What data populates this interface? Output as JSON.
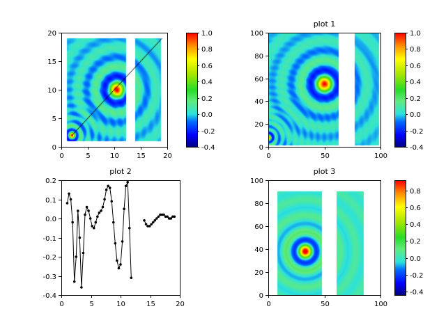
{
  "window": {
    "background": "#ffffff",
    "frame_color": "#000000",
    "text_color": "#000000"
  },
  "chart_data": [
    {
      "type": "heatmap",
      "title": "",
      "x_range": [
        0,
        20
      ],
      "y_range": [
        0,
        20
      ],
      "x_ticks": {
        "values": [
          0,
          5,
          10,
          15,
          20
        ],
        "labels": [
          "0",
          "5",
          "10",
          "15",
          "20"
        ]
      },
      "y_ticks": {
        "values": [
          0,
          5,
          10,
          15,
          20
        ],
        "labels": [
          "0",
          "5",
          "10",
          "15",
          "20"
        ]
      },
      "colorbar": {
        "range": [
          -0.4,
          1.0
        ],
        "tick_values": [
          1.0,
          0.8,
          0.6,
          0.4,
          0.2,
          0.0,
          -0.2,
          -0.4
        ],
        "tick_labels": [
          "1.0",
          "0.8",
          "0.6",
          "0.4",
          "0.2",
          "0.0",
          "-0.2",
          "-0.4"
        ]
      },
      "blocks": [
        {
          "x": [
            1,
            12.2
          ],
          "y": [
            1,
            19
          ]
        },
        {
          "x": [
            14,
            18.8
          ],
          "y": [
            1,
            19
          ]
        }
      ],
      "sources": [
        {
          "cx": 10.5,
          "cy": 10,
          "k": 1.9,
          "amp": 1.0
        },
        {
          "cx": 2,
          "cy": 2,
          "k": 4.5,
          "amp": 1.0
        }
      ],
      "overlay_line": {
        "x": [
          2,
          19
        ],
        "y": [
          2,
          19
        ]
      }
    },
    {
      "type": "heatmap",
      "title": "plot 1",
      "x_range": [
        0,
        100
      ],
      "y_range": [
        0,
        100
      ],
      "x_ticks": {
        "values": [
          0,
          50,
          100
        ],
        "labels": [
          "0",
          "50",
          "100"
        ]
      },
      "y_ticks": {
        "values": [
          0,
          20,
          40,
          60,
          80,
          100
        ],
        "labels": [
          "0",
          "20",
          "40",
          "60",
          "80",
          "100"
        ]
      },
      "colorbar": {
        "range": [
          -0.4,
          1.0
        ],
        "tick_values": [
          1.0,
          0.8,
          0.6,
          0.4,
          0.2,
          0.0,
          -0.2,
          -0.4
        ],
        "tick_labels": [
          "1.0",
          "0.8",
          "0.6",
          "0.4",
          "0.2",
          "0.0",
          "-0.2",
          "-0.4"
        ]
      },
      "blocks": [
        {
          "x": [
            0,
            63
          ],
          "y": [
            1,
            100
          ]
        },
        {
          "x": [
            77,
            99
          ],
          "y": [
            1,
            100
          ]
        }
      ],
      "sources": [
        {
          "cx": 50,
          "cy": 55,
          "k": 0.37,
          "amp": 1.0
        },
        {
          "cx": 0,
          "cy": 8,
          "k": 1.1,
          "amp": 1.0
        }
      ],
      "overlay_line": null
    },
    {
      "type": "line",
      "title": "plot 2",
      "x_range": [
        0,
        20
      ],
      "y_range": [
        -0.4,
        0.2
      ],
      "x_ticks": {
        "values": [
          0,
          5,
          10,
          15,
          20
        ],
        "labels": [
          "0",
          "5",
          "10",
          "15",
          "20"
        ]
      },
      "y_ticks": {
        "values": [
          0.2,
          0.1,
          0.0,
          -0.1,
          -0.2,
          -0.3,
          -0.4
        ],
        "labels": [
          "0.2",
          "0.1",
          "0.0",
          "-0.1",
          "-0.2",
          "-0.3",
          "-0.4"
        ]
      },
      "marker": "dot",
      "segments": [
        {
          "x": [
            1,
            1.3,
            1.6,
            1.9,
            2.2,
            2.5,
            2.8,
            3.1,
            3.4,
            3.7,
            4,
            4.3,
            4.6,
            4.9,
            5.2,
            5.5,
            5.8,
            6.1,
            6.4,
            6.7,
            7,
            7.3,
            7.6,
            7.9,
            8.2,
            8.5,
            8.8,
            9.1,
            9.4,
            9.7,
            10,
            10.3,
            10.6,
            10.9,
            11.2,
            11.5,
            11.8
          ],
          "y": [
            0.08,
            0.13,
            0.1,
            -0.02,
            -0.33,
            -0.2,
            0.04,
            -0.1,
            -0.36,
            -0.18,
            0.02,
            0.06,
            0.04,
            0,
            -0.04,
            -0.05,
            -0.02,
            0.01,
            0.03,
            0.04,
            0.06,
            0.1,
            0.15,
            0.17,
            0.16,
            0.09,
            -0.02,
            -0.13,
            -0.22,
            -0.26,
            -0.24,
            -0.12,
            0.05,
            0.17,
            0.19,
            -0.05,
            -0.31
          ]
        },
        {
          "x": [
            14,
            14.3,
            14.6,
            14.9,
            15.2,
            15.5,
            15.8,
            16.1,
            16.4,
            16.7,
            17,
            17.3,
            17.6,
            17.9,
            18.2,
            18.5,
            18.8,
            19.1
          ],
          "y": [
            -0.01,
            -0.03,
            -0.04,
            -0.04,
            -0.03,
            -0.02,
            -0.01,
            0,
            0.01,
            0.02,
            0.02,
            0.02,
            0.01,
            0.01,
            0,
            0,
            0.01,
            0.01
          ]
        }
      ]
    },
    {
      "type": "heatmap",
      "title": "plot 3",
      "x_range": [
        0,
        100
      ],
      "y_range": [
        0,
        100
      ],
      "x_ticks": {
        "values": [
          0,
          50,
          100
        ],
        "labels": [
          "0",
          "50",
          "100"
        ]
      },
      "y_ticks": {
        "values": [
          0,
          20,
          40,
          60,
          80,
          100
        ],
        "labels": [
          "0",
          "20",
          "40",
          "60",
          "80",
          "100"
        ]
      },
      "colorbar": {
        "range": [
          -0.44,
          0.92
        ],
        "tick_values": [
          0.8,
          0.6,
          0.4,
          0.2,
          0.0,
          -0.2,
          -0.4
        ],
        "tick_labels": [
          "0.8",
          "0.6",
          "0.4",
          "0.2",
          "0.0",
          "-0.2",
          "-0.4"
        ]
      },
      "blocks": [
        {
          "x": [
            8,
            48
          ],
          "y": [
            0,
            90
          ]
        },
        {
          "x": [
            61,
            85
          ],
          "y": [
            0,
            90
          ]
        }
      ],
      "sources": [
        {
          "cx": 33,
          "cy": 38,
          "k": 0.45,
          "amp": 1.0
        }
      ],
      "overlay_line": null
    }
  ]
}
